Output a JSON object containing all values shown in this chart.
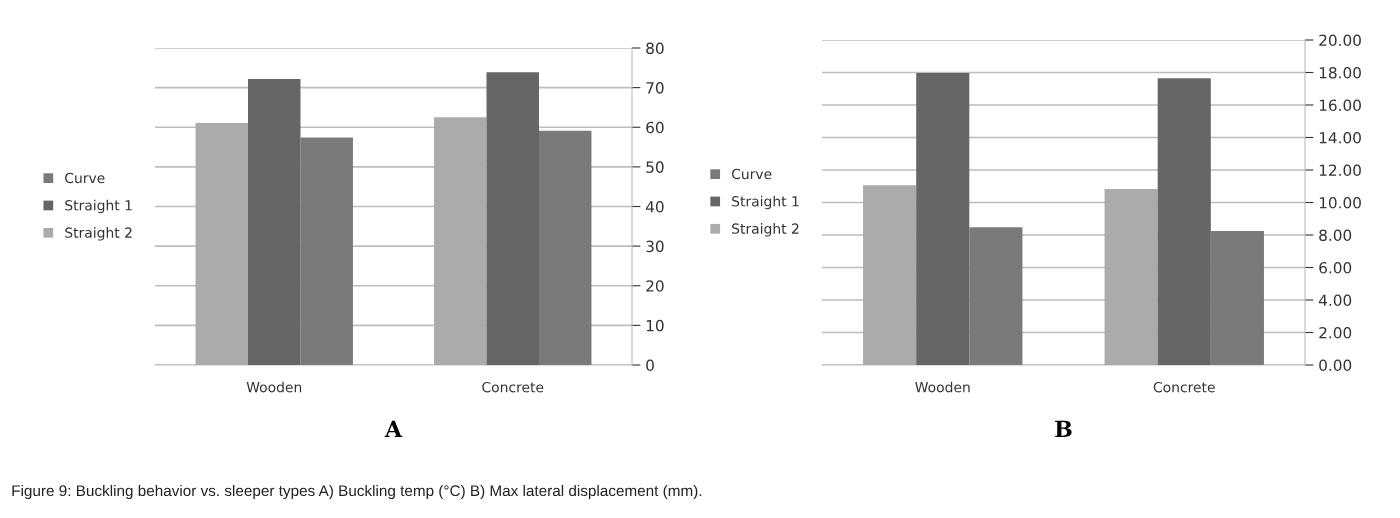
{
  "chart_data": [
    {
      "type": "bar",
      "xlabel": "A",
      "categories": [
        "Wooden",
        "Concrete"
      ],
      "series": [
        {
          "name": "Straight 2",
          "color": "#ababab",
          "values": [
            61.1,
            62.5
          ]
        },
        {
          "name": "Straight 1",
          "color": "#666666",
          "values": [
            72.2,
            73.9
          ]
        },
        {
          "name": "Curve",
          "color": "#7a7a7a",
          "values": [
            57.4,
            59.1
          ]
        }
      ],
      "ylim": [
        0,
        80
      ],
      "yticks": [
        0,
        10,
        20,
        30,
        40,
        50,
        60,
        70,
        80
      ],
      "grid": "y",
      "legend": "left"
    },
    {
      "type": "bar",
      "xlabel": "B",
      "categories": [
        "Wooden",
        "Concrete"
      ],
      "series": [
        {
          "name": "Straight 2",
          "color": "#ababab",
          "values": [
            11.06,
            10.83
          ]
        },
        {
          "name": "Straight 1",
          "color": "#666666",
          "values": [
            17.97,
            17.65
          ]
        },
        {
          "name": "Curve",
          "color": "#7a7a7a",
          "values": [
            8.48,
            8.25
          ]
        }
      ],
      "ylim": [
        0,
        20
      ],
      "yticks": [
        {
          "value": 0,
          "label": "0.00"
        },
        {
          "value": 2,
          "label": "2.00"
        },
        {
          "value": 4,
          "label": "4.00"
        },
        {
          "value": 6,
          "label": "6.00"
        },
        {
          "value": 8,
          "label": "8.00"
        },
        {
          "value": 10,
          "label": "10.00"
        },
        {
          "value": 12,
          "label": "12.00"
        },
        {
          "value": 14,
          "label": "14.00"
        },
        {
          "value": 16,
          "label": "16.00"
        },
        {
          "value": 18,
          "label": "18.00"
        },
        {
          "value": 20,
          "label": "20.00"
        }
      ],
      "grid": "y",
      "legend": "left",
      "annotations": [
        "Figure 9: Buckling behavior vs. sleeper types A) Buckling temp (°C) B) Max lateral displacement (mm)."
      ]
    }
  ]
}
